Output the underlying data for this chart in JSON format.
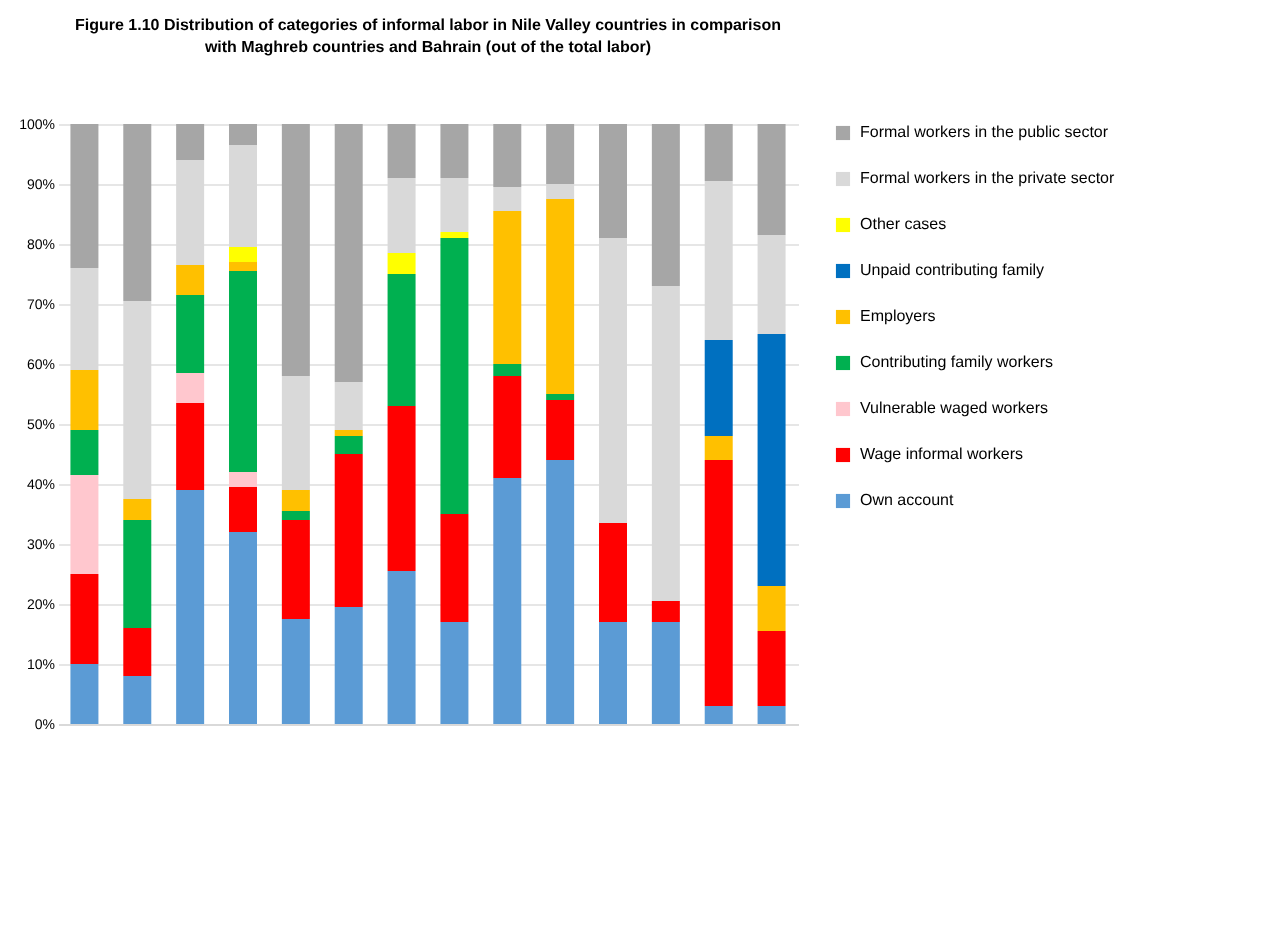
{
  "chart_data": {
    "type": "bar",
    "stacked": true,
    "title": "Figure 1.10 Distribution of categories of informal labor in Nile Valley countries in comparison with Maghreb countries and Bahrain (out of the total labor)",
    "categories": [
      null,
      null,
      null,
      null,
      null,
      null,
      null,
      null,
      null,
      null,
      null,
      null,
      null,
      null
    ],
    "series": [
      {
        "name": "Own account",
        "color": "#5b9bd5",
        "values": [
          10,
          8,
          39,
          32,
          17.5,
          19.5,
          25.5,
          17,
          41,
          44,
          17,
          17,
          3,
          3
        ]
      },
      {
        "name": "Wage informal workers",
        "color": "#ff0000",
        "values": [
          15,
          8,
          14.5,
          7.5,
          16.5,
          25.5,
          27.5,
          18,
          17,
          10,
          16.5,
          3.5,
          41,
          12.5
        ]
      },
      {
        "name": "Vulnerable waged workers",
        "color": "#ffc7ce",
        "values": [
          16.5,
          null,
          5,
          2.5,
          null,
          null,
          null,
          null,
          null,
          null,
          null,
          null,
          null,
          null
        ]
      },
      {
        "name": "Contributing family workers",
        "color": "#00b050",
        "values": [
          7.5,
          18,
          13,
          33.5,
          1.5,
          3,
          22,
          46,
          2,
          1,
          null,
          null,
          null,
          null
        ]
      },
      {
        "name": "Employers",
        "color": "#ffc000",
        "values": [
          10,
          3.5,
          5,
          1.5,
          3.5,
          1,
          null,
          null,
          25.5,
          32.5,
          null,
          null,
          4,
          7.5
        ]
      },
      {
        "name": "Unpaid contributing family",
        "color": "#0070c0",
        "values": [
          null,
          null,
          null,
          null,
          null,
          null,
          null,
          null,
          null,
          null,
          null,
          null,
          16,
          42
        ]
      },
      {
        "name": "Other cases",
        "color": "#ffff00",
        "values": [
          null,
          null,
          null,
          2.5,
          null,
          null,
          3.5,
          1,
          null,
          null,
          null,
          null,
          null,
          null
        ]
      },
      {
        "name": "Formal workers in the private sector",
        "color": "#d9d9d9",
        "values": [
          17,
          33,
          17.5,
          17,
          19,
          8,
          12.5,
          9,
          4,
          2.5,
          47.5,
          52.5,
          26.5,
          16.5
        ]
      },
      {
        "name": "Formal workers in the public sector",
        "color": "#a6a6a6",
        "values": [
          24,
          29.5,
          6,
          3.5,
          42,
          43,
          9,
          9,
          10.5,
          10,
          19,
          27,
          9.5,
          18.5
        ]
      }
    ],
    "ylim": [
      0,
      100
    ],
    "yticks": [
      {
        "value": 0,
        "label": "0%"
      },
      {
        "value": 10,
        "label": "10%"
      },
      {
        "value": 20,
        "label": "20%"
      },
      {
        "value": 30,
        "label": "30%"
      },
      {
        "value": 40,
        "label": "40%"
      },
      {
        "value": 50,
        "label": "50%"
      },
      {
        "value": 60,
        "label": "60%"
      },
      {
        "value": 70,
        "label": "70%"
      },
      {
        "value": 80,
        "label": "80%"
      },
      {
        "value": 90,
        "label": "90%"
      },
      {
        "value": 100,
        "label": "100%"
      }
    ],
    "grid": "y",
    "legend": "right"
  }
}
